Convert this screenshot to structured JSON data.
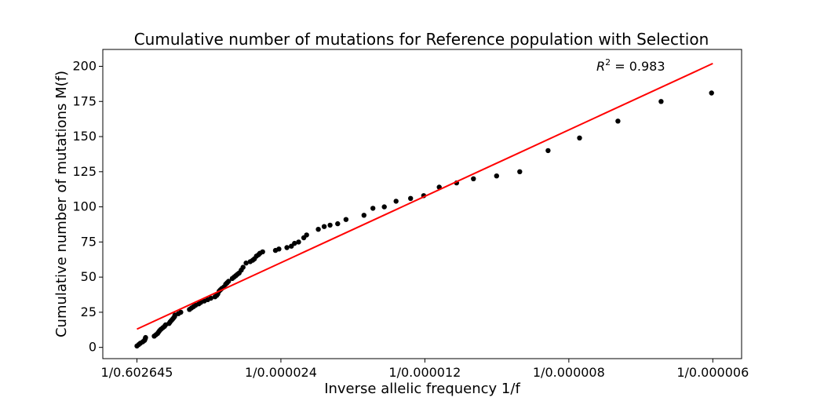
{
  "chart_data": {
    "type": "scatter",
    "title": "Cumulative number of mutations for Reference population with Selection",
    "xlabel": "Inverse allelic frequency 1/f",
    "ylabel": "Cumulative number of mutations M(f)",
    "xticks": [
      {
        "value": 1.66,
        "label": "1/0.602645"
      },
      {
        "value": 41666.67,
        "label": "1/0.000024"
      },
      {
        "value": 83333.33,
        "label": "1/0.000012"
      },
      {
        "value": 125000,
        "label": "1/0.000008"
      },
      {
        "value": 166666.67,
        "label": "1/0.000006"
      }
    ],
    "yticks": [
      0,
      25,
      50,
      75,
      100,
      125,
      150,
      175,
      200
    ],
    "xlim": [
      -9875,
      175000
    ],
    "ylim": [
      -8,
      212
    ],
    "grid": false,
    "annotation": {
      "r2_label": "R",
      "r2_sup": "2",
      "r2_rest": " =  0.983",
      "position": "top-right"
    },
    "fit_line": {
      "color": "#ff0000",
      "x": [
        1.66,
        166666.67
      ],
      "y": [
        13,
        202
      ]
    },
    "series": [
      {
        "color": "#000000",
        "points": [
          [
            0,
            1
          ],
          [
            500,
            2
          ],
          [
            1000,
            3
          ],
          [
            1700,
            4
          ],
          [
            2200,
            5
          ],
          [
            2400,
            6
          ],
          [
            2500,
            7
          ],
          [
            5000,
            8
          ],
          [
            5500,
            9
          ],
          [
            6000,
            10
          ],
          [
            6300,
            11
          ],
          [
            6600,
            12
          ],
          [
            7000,
            13
          ],
          [
            7500,
            14
          ],
          [
            8000,
            15
          ],
          [
            8300,
            16
          ],
          [
            9300,
            17
          ],
          [
            9600,
            18
          ],
          [
            9900,
            19
          ],
          [
            10300,
            20
          ],
          [
            10600,
            21
          ],
          [
            10900,
            22
          ],
          [
            11000,
            23
          ],
          [
            12000,
            24
          ],
          [
            12700,
            25
          ],
          [
            15200,
            27
          ],
          [
            15800,
            28
          ],
          [
            16400,
            29
          ],
          [
            17000,
            30
          ],
          [
            17900,
            31
          ],
          [
            18500,
            32
          ],
          [
            19500,
            33
          ],
          [
            20500,
            34
          ],
          [
            21400,
            35
          ],
          [
            22600,
            36
          ],
          [
            23100,
            37
          ],
          [
            23400,
            38
          ],
          [
            23800,
            40
          ],
          [
            24200,
            41
          ],
          [
            24600,
            42
          ],
          [
            25200,
            43
          ],
          [
            25700,
            45
          ],
          [
            26100,
            46
          ],
          [
            26500,
            47
          ],
          [
            27600,
            49
          ],
          [
            28100,
            50
          ],
          [
            28600,
            51
          ],
          [
            29100,
            52
          ],
          [
            29600,
            53
          ],
          [
            30200,
            55
          ],
          [
            30700,
            57
          ],
          [
            31600,
            60
          ],
          [
            32800,
            61
          ],
          [
            33500,
            62
          ],
          [
            34000,
            63
          ],
          [
            34600,
            65
          ],
          [
            35200,
            66
          ],
          [
            35600,
            67
          ],
          [
            36400,
            68
          ],
          [
            40100,
            69
          ],
          [
            41100,
            70
          ],
          [
            43400,
            71
          ],
          [
            44700,
            72
          ],
          [
            45600,
            74
          ],
          [
            46800,
            75
          ],
          [
            48300,
            78
          ],
          [
            49100,
            80
          ],
          [
            52500,
            84
          ],
          [
            54200,
            86
          ],
          [
            55900,
            87
          ],
          [
            58100,
            88
          ],
          [
            60500,
            91
          ],
          [
            65700,
            94
          ],
          [
            68300,
            99
          ],
          [
            71600,
            100
          ],
          [
            75000,
            104
          ],
          [
            79200,
            106
          ],
          [
            83000,
            108
          ],
          [
            87500,
            114
          ],
          [
            92500,
            117
          ],
          [
            97400,
            120
          ],
          [
            104100,
            122
          ],
          [
            110800,
            125
          ],
          [
            119000,
            140
          ],
          [
            128100,
            149
          ],
          [
            139200,
            161
          ],
          [
            151700,
            175
          ],
          [
            166300,
            181
          ]
        ]
      }
    ]
  }
}
